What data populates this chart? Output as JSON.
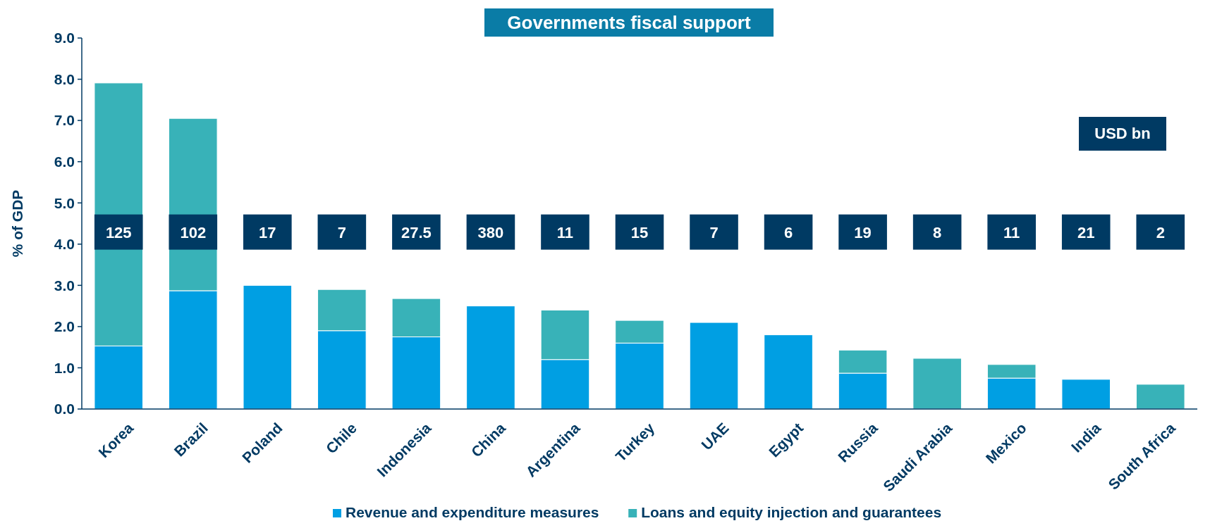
{
  "chart_data": {
    "type": "bar",
    "title": "Governments fiscal support",
    "ylabel": "% of GDP",
    "stacked": true,
    "legend": "bottom",
    "grid": false,
    "categories": [
      "Korea",
      "Brazil",
      "Poland",
      "Chile",
      "Indonesia",
      "China",
      "Argentina",
      "Turkey",
      "UAE",
      "Egypt",
      "Russia",
      "Saudi Arabia",
      "Mexico",
      "India",
      "South Africa"
    ],
    "series": [
      {
        "name": "Revenue and expenditure measures",
        "color": "#009fe3",
        "values": [
          1.53,
          2.87,
          3.0,
          1.9,
          1.75,
          2.5,
          1.2,
          1.6,
          2.1,
          1.8,
          0.87,
          null,
          0.75,
          0.72,
          null
        ]
      },
      {
        "name": "Loans and equity injection and guarantees",
        "color": "#38b2b8",
        "values": [
          6.38,
          4.18,
          null,
          1.0,
          0.93,
          null,
          1.2,
          0.55,
          null,
          null,
          0.56,
          1.23,
          0.33,
          null,
          0.6
        ]
      }
    ],
    "ylim": [
      0,
      9
    ],
    "yticks": [
      {
        "value": 0,
        "label": "0.0"
      },
      {
        "value": 1,
        "label": "1.0"
      },
      {
        "value": 2,
        "label": "2.0"
      },
      {
        "value": 3,
        "label": "3.0"
      },
      {
        "value": 4,
        "label": "4.0"
      },
      {
        "value": 5,
        "label": "5.0"
      },
      {
        "value": 6,
        "label": "6.0"
      },
      {
        "value": 7,
        "label": "7.0"
      },
      {
        "value": 8,
        "label": "8.0"
      },
      {
        "value": 9,
        "label": "9.0"
      }
    ],
    "annotations": [
      "USD bn",
      "125",
      "102",
      "17",
      "7",
      "27.5",
      "380",
      "11",
      "15",
      "7",
      "6",
      "19",
      "8",
      "11",
      "21",
      "2"
    ]
  }
}
